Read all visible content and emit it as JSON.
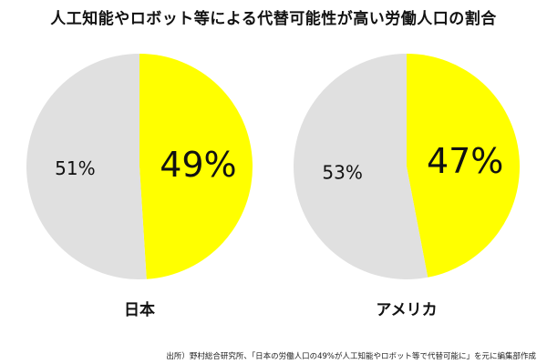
{
  "title": "人工知能やロボット等による代替可能性が高い労働人口の割合",
  "source": "出所）野村総合研究所、「日本の労働人口の49%が人工知能やロボット等で代替可能に」を元に編集部作成",
  "colors": {
    "replaceable": "#ffff00",
    "other": "#e0e0e0"
  },
  "chart_data": [
    {
      "type": "pie",
      "label": "日本",
      "slices": [
        {
          "value": 49,
          "label": "49%",
          "color": "#ffff00"
        },
        {
          "value": 51,
          "label": "51%",
          "color": "#e0e0e0"
        }
      ]
    },
    {
      "type": "pie",
      "label": "アメリカ",
      "slices": [
        {
          "value": 47,
          "label": "47%",
          "color": "#ffff00"
        },
        {
          "value": 53,
          "label": "53%",
          "color": "#e0e0e0"
        }
      ]
    }
  ]
}
